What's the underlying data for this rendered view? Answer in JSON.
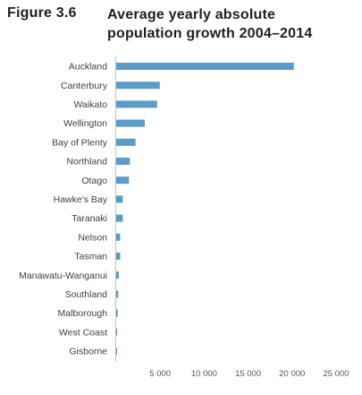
{
  "figure": {
    "number": "Figure 3.6",
    "title": "Average yearly absolute population growth 2004–2014"
  },
  "chart_data": {
    "type": "bar",
    "orientation": "horizontal",
    "title": "Average yearly absolute population growth 2004–2014",
    "xlabel": "",
    "ylabel": "",
    "categories": [
      "Auckland",
      "Canterbury",
      "Waikato",
      "Wellington",
      "Bay of Plenty",
      "Northland",
      "Otago",
      "Hawke's Bay",
      "Taranaki",
      "Nelson",
      "Tasman",
      "Manawatu-Wanganui",
      "Southland",
      "Malborough",
      "West Coast",
      "Gisborne"
    ],
    "values": [
      20200,
      4950,
      4650,
      3250,
      2200,
      1550,
      1450,
      750,
      750,
      450,
      450,
      300,
      230,
      180,
      100,
      80
    ],
    "xlim": [
      0,
      25000
    ],
    "xticks": [
      5000,
      10000,
      15000,
      20000,
      25000
    ],
    "xtick_labels": [
      "5 000",
      "10 000",
      "15 000",
      "20 000",
      "25 000"
    ],
    "bar_color": "#5b9bc8",
    "axis_color": "#bfbfbf",
    "grid": false,
    "legend": "none"
  }
}
